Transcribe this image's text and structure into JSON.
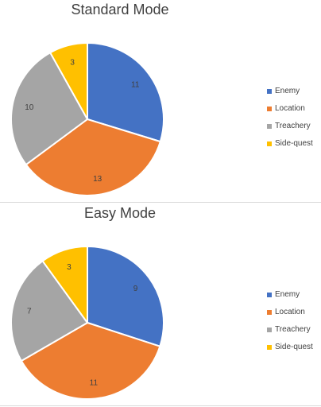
{
  "chart_data": [
    {
      "type": "pie",
      "title": "Standard Mode",
      "categories": [
        "Enemy",
        "Location",
        "Treachery",
        "Side-quest"
      ],
      "values": [
        11,
        13,
        10,
        3
      ],
      "colors": [
        "#4472c4",
        "#ed7d31",
        "#a5a5a5",
        "#ffc000"
      ],
      "legend": "right"
    },
    {
      "type": "pie",
      "title": "Easy Mode",
      "categories": [
        "Enemy",
        "Location",
        "Treachery",
        "Side-quest"
      ],
      "values": [
        9,
        11,
        7,
        3
      ],
      "colors": [
        "#4472c4",
        "#ed7d31",
        "#a5a5a5",
        "#ffc000"
      ],
      "legend": "right"
    }
  ]
}
